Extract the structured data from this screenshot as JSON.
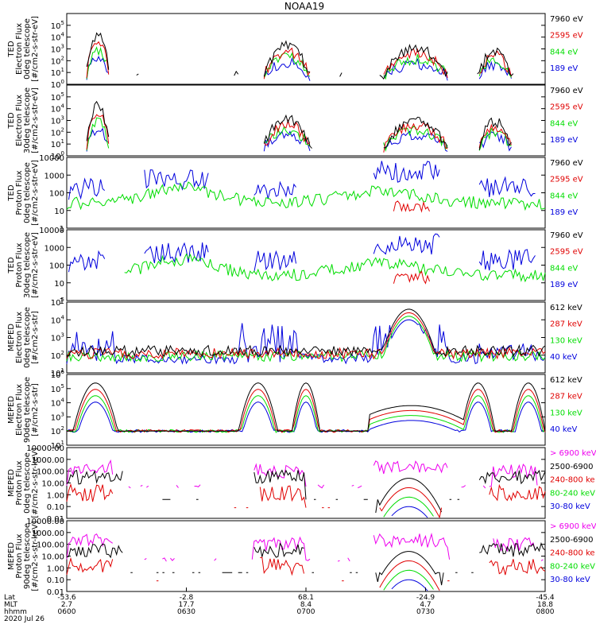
{
  "title": "NOAA19",
  "x_axis": {
    "row_labels": [
      "Lat",
      "MLT",
      "hhmm",
      "2020 Jul 26"
    ],
    "ticks": [
      {
        "lat": "-53.6",
        "mlt": "2.7",
        "time": "0600"
      },
      {
        "lat": "-2.8",
        "mlt": "17.7",
        "time": "0630"
      },
      {
        "lat": "68.1",
        "mlt": "8.4",
        "time": "0700"
      },
      {
        "lat": "-24.9",
        "mlt": "4.7",
        "time": "0730"
      },
      {
        "lat": "-45.4",
        "mlt": "18.8",
        "time": "0800"
      }
    ]
  },
  "colors": {
    "black": "#000000",
    "red": "#e00000",
    "green": "#00dd00",
    "blue": "#0000dd",
    "magenta": "#ee00ee"
  },
  "chart_data": [
    {
      "type": "line",
      "panel": "TED electron 0deg",
      "ylabel": [
        "TED",
        "Electron Flux",
        "0deg telescope",
        "[#/cm2-s-str-eV]"
      ],
      "scale": "log",
      "ylim": [
        1,
        1000000
      ],
      "tick_labels": [
        "10^0",
        "10^1",
        "10^2",
        "10^3",
        "10^4",
        "10^5"
      ],
      "x_range": [
        "0600",
        "0800"
      ],
      "legend": [
        {
          "text": "7960 eV",
          "color": "black"
        },
        {
          "text": "2595 eV",
          "color": "red"
        },
        {
          "text": "844 eV",
          "color": "green"
        },
        {
          "text": "189 eV",
          "color": "blue"
        }
      ]
    },
    {
      "type": "line",
      "panel": "TED electron 30deg",
      "ylabel": [
        "TED",
        "Electron Flux",
        "30deg telescope",
        "[#/cm2-s-str-eV]"
      ],
      "scale": "log",
      "ylim": [
        1,
        1000000
      ],
      "tick_labels": [
        "10^0",
        "10^1",
        "10^2",
        "10^3",
        "10^4",
        "10^5"
      ],
      "x_range": [
        "0600",
        "0800"
      ],
      "legend": [
        {
          "text": "7960 eV",
          "color": "black"
        },
        {
          "text": "2595 eV",
          "color": "red"
        },
        {
          "text": "844 eV",
          "color": "green"
        },
        {
          "text": "189 eV",
          "color": "blue"
        }
      ]
    },
    {
      "type": "line",
      "panel": "TED proton 0deg",
      "ylabel": [
        "TED",
        "Proton Flux",
        "0deg telescope",
        "[#/cm2-s-str-eV]"
      ],
      "scale": "log",
      "ylim": [
        1,
        10000
      ],
      "tick_labels": [
        "1",
        "10",
        "100",
        "1000",
        "10000"
      ],
      "x_range": [
        "0600",
        "0800"
      ],
      "legend": [
        {
          "text": "7960 eV",
          "color": "black"
        },
        {
          "text": "2595 eV",
          "color": "red"
        },
        {
          "text": "844 eV",
          "color": "green"
        },
        {
          "text": "189 eV",
          "color": "blue"
        }
      ]
    },
    {
      "type": "line",
      "panel": "TED proton 30deg",
      "ylabel": [
        "TED",
        "Proton Flux",
        "30deg telescope",
        "[#/cm2-s-str-eV]"
      ],
      "scale": "log",
      "ylim": [
        1,
        10000
      ],
      "tick_labels": [
        "1",
        "10",
        "100",
        "1000",
        "10000"
      ],
      "x_range": [
        "0600",
        "0800"
      ],
      "legend": [
        {
          "text": "7960 eV",
          "color": "black"
        },
        {
          "text": "2595 eV",
          "color": "red"
        },
        {
          "text": "844 eV",
          "color": "green"
        },
        {
          "text": "189 eV",
          "color": "blue"
        }
      ]
    },
    {
      "type": "line",
      "panel": "MEPED electron 0deg",
      "ylabel": [
        "MEPED",
        "Electron Flux",
        "0deg telescope",
        "[#/cm2-s-str]"
      ],
      "scale": "log",
      "ylim": [
        10,
        100000
      ],
      "tick_labels": [
        "10^1",
        "10^2",
        "10^3",
        "10^4",
        "10^5"
      ],
      "x_range": [
        "0600",
        "0800"
      ],
      "legend": [
        {
          "text": "612 keV",
          "color": "black"
        },
        {
          "text": "287 keV",
          "color": "red"
        },
        {
          "text": "130 keV",
          "color": "green"
        },
        {
          "text": "40 keV",
          "color": "blue"
        }
      ]
    },
    {
      "type": "line",
      "panel": "MEPED electron 90deg",
      "ylabel": [
        "MEPED",
        "Electron Flux",
        "90deg telescope",
        "[#/cm2-s-str]"
      ],
      "scale": "log",
      "ylim": [
        10,
        1000000
      ],
      "tick_labels": [
        "10^1",
        "10^2",
        "10^3",
        "10^4",
        "10^5",
        "10^6"
      ],
      "x_range": [
        "0600",
        "0800"
      ],
      "legend": [
        {
          "text": "612 keV",
          "color": "black"
        },
        {
          "text": "287 keV",
          "color": "red"
        },
        {
          "text": "130 keV",
          "color": "green"
        },
        {
          "text": "40 keV",
          "color": "blue"
        }
      ]
    },
    {
      "type": "line",
      "panel": "MEPED proton 0deg",
      "ylabel": [
        "MEPED",
        "Proton Flux",
        "0deg telescope",
        "[#/cm2-s-str-keV]"
      ],
      "scale": "log",
      "ylim": [
        0.01,
        10000
      ],
      "tick_labels": [
        "0.01",
        "0.10",
        "1.00",
        "10.00",
        "100.00",
        "1000.00",
        "10000.00"
      ],
      "x_range": [
        "0600",
        "0800"
      ],
      "legend": [
        {
          "text": "> 6900 keV",
          "color": "magenta"
        },
        {
          "text": "2500-6900",
          "color": "black"
        },
        {
          "text": "240-800 ke",
          "color": "red"
        },
        {
          "text": "80-240 keV",
          "color": "green"
        },
        {
          "text": "30-80 keV",
          "color": "blue"
        }
      ]
    },
    {
      "type": "line",
      "panel": "MEPED proton 90deg",
      "ylabel": [
        "MEPED",
        "Proton Flux",
        "90deg telescope",
        "[#/cm2-s-str-keV]"
      ],
      "scale": "log",
      "ylim": [
        0.01,
        10000
      ],
      "tick_labels": [
        "0.01",
        "0.10",
        "1.00",
        "10.00",
        "100.00",
        "1000.00",
        "10000.00"
      ],
      "x_range": [
        "0600",
        "0800"
      ],
      "legend": [
        {
          "text": "> 6900 keV",
          "color": "magenta"
        },
        {
          "text": "2500-6900",
          "color": "black"
        },
        {
          "text": "240-800 ke",
          "color": "red"
        },
        {
          "text": "80-240 keV",
          "color": "green"
        },
        {
          "text": "30-80 keV",
          "color": "blue"
        }
      ]
    }
  ]
}
